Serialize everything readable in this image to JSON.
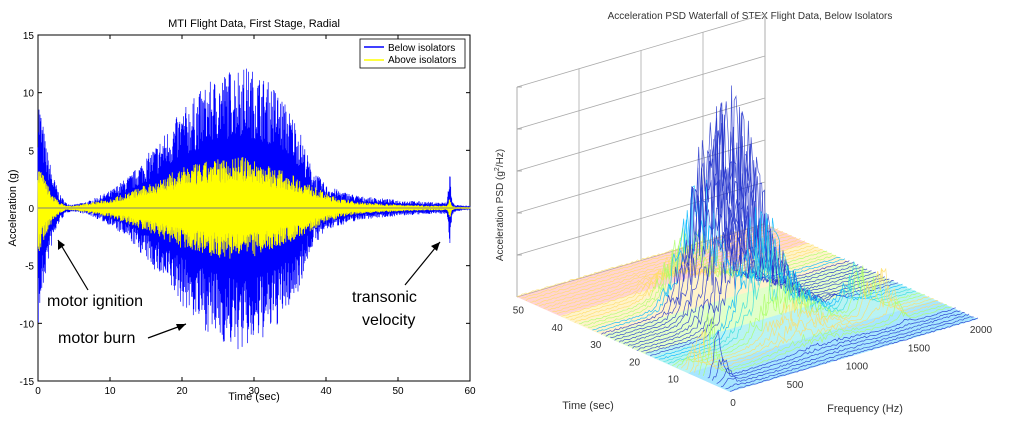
{
  "chart_data": [
    {
      "type": "line",
      "title": "MTI Flight Data, First Stage, Radial",
      "xlabel": "Time (sec)",
      "ylabel": "Acceleration (g)",
      "xlim": [
        0,
        60
      ],
      "ylim": [
        -15,
        15
      ],
      "x_ticks": [
        "0",
        "10",
        "20",
        "30",
        "40",
        "50",
        "60"
      ],
      "y_ticks": [
        "15",
        "10",
        "5",
        "0",
        "-5",
        "-10",
        "-15"
      ],
      "legend_position": "top-right",
      "series": [
        {
          "name": "Below isolators",
          "color": "#0000ff",
          "envelope": {
            "t": [
              0,
              1,
              2,
              3,
              4,
              5,
              7,
              10,
              13,
              17,
              20,
              23,
              25,
              28,
              30,
              33,
              36,
              38,
              40,
              42,
              45,
              50,
              55,
              56.8,
              57.2,
              57.5,
              58,
              59,
              60
            ],
            "amp": [
              10.5,
              6,
              3,
              1.2,
              0.4,
              0.3,
              0.6,
              1.5,
              3,
              6,
              8.5,
              10.5,
              11.5,
              12.5,
              12,
              10.5,
              7.5,
              3.5,
              2,
              1.5,
              1,
              0.7,
              0.5,
              0.5,
              3.5,
              0.6,
              0.3,
              0.2,
              0.2
            ]
          }
        },
        {
          "name": "Above isolators",
          "color": "#ffff00",
          "envelope": {
            "t": [
              0,
              1,
              2,
              3,
              4,
              5,
              10,
              15,
              20,
              25,
              28,
              30,
              35,
              40,
              42,
              45,
              50,
              55,
              56.8,
              57.2,
              57.5,
              58,
              60
            ],
            "amp": [
              4,
              2.5,
              1.2,
              0.5,
              0.2,
              0.2,
              0.8,
              2,
              3.5,
              4.3,
              4.5,
              4.2,
              3,
              1.3,
              0.8,
              0.5,
              0.3,
              0.2,
              0.2,
              1,
              0.2,
              0.1,
              0.1
            ]
          }
        }
      ],
      "annotations": [
        {
          "text": "motor ignition",
          "arrow_to": [
            2.5,
            -2.5
          ]
        },
        {
          "text": "motor burn",
          "arrow_to": [
            26,
            -10.5
          ]
        },
        {
          "text": "transonic velocity",
          "lines": [
            "transonic",
            "velocity"
          ],
          "arrow_to": [
            56.5,
            -3
          ]
        }
      ]
    },
    {
      "type": "waterfall",
      "title": "Acceleration PSD Waterfall of STEX Flight Data, Below Isolators",
      "xlabel": "Frequency (Hz)",
      "ylabel": "Time (sec)",
      "zlabel_parts": [
        "Acceleration PSD (g",
        "2",
        "/Hz)"
      ],
      "x_ticks": [
        "0",
        "500",
        "1000",
        "1500",
        "2000"
      ],
      "y_ticks": [
        "10",
        "20",
        "30",
        "40",
        "50"
      ],
      "xlim": [
        0,
        2000
      ],
      "ylim": [
        0,
        55
      ],
      "colormap": [
        "#2233cc",
        "#00b7ff",
        "#33dddd",
        "#aaff66",
        "#ffdd66",
        "#ff8080"
      ],
      "peak": {
        "frequency_hz": 800,
        "time_sec": 27
      },
      "secondary_peaks": [
        {
          "frequency_hz": 80,
          "time_sec": 8
        },
        {
          "frequency_hz": 1500,
          "time_sec": 15
        },
        {
          "frequency_hz": 1600,
          "time_sec": 12
        }
      ]
    }
  ]
}
